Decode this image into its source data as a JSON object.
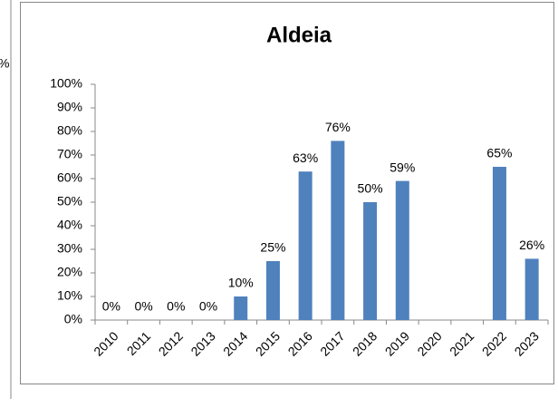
{
  "partial_label": "%",
  "chart_data": {
    "type": "bar",
    "title": "Aldeia",
    "categories": [
      "2010",
      "2011",
      "2012",
      "2013",
      "2014",
      "2015",
      "2016",
      "2017",
      "2018",
      "2019",
      "2020",
      "2021",
      "2022",
      "2023"
    ],
    "values": [
      0,
      0,
      0,
      0,
      10,
      25,
      63,
      76,
      50,
      59,
      null,
      null,
      65,
      26
    ],
    "value_labels": [
      "0%",
      "0%",
      "0%",
      "0%",
      "10%",
      "25%",
      "63%",
      "76%",
      "50%",
      "59%",
      null,
      null,
      "65%",
      "26%"
    ],
    "color": "#4f81bd",
    "ylim": [
      0,
      100
    ],
    "yticks": [
      {
        "value": 0,
        "label": "0%"
      },
      {
        "value": 10,
        "label": "10%"
      },
      {
        "value": 20,
        "label": "20%"
      },
      {
        "value": 30,
        "label": "30%"
      },
      {
        "value": 40,
        "label": "40%"
      },
      {
        "value": 50,
        "label": "50%"
      },
      {
        "value": 60,
        "label": "60%"
      },
      {
        "value": 70,
        "label": "70%"
      },
      {
        "value": 80,
        "label": "80%"
      },
      {
        "value": 90,
        "label": "90%"
      },
      {
        "value": 100,
        "label": "100%"
      }
    ],
    "grid": false
  }
}
